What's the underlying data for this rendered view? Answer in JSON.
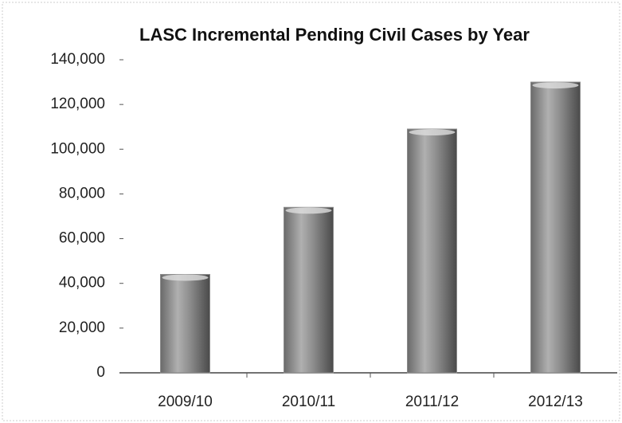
{
  "chart_data": {
    "type": "bar",
    "title": "LASC Incremental Pending Civil Cases by Year",
    "categories": [
      "2009/10",
      "2010/11",
      "2011/12",
      "2012/13"
    ],
    "values": [
      44000,
      74000,
      109000,
      130000
    ],
    "color": "#8a8a8a",
    "ylim": [
      0,
      140000
    ],
    "yticks": [
      0,
      {
        "value": 20000,
        "label": "20,000"
      },
      {
        "value": 40000,
        "label": "40,000"
      },
      {
        "value": 60000,
        "label": "60,000"
      },
      {
        "value": 80000,
        "label": "80,000"
      },
      {
        "value": 100000,
        "label": "100,000"
      },
      {
        "value": 120000,
        "label": "120,000"
      },
      {
        "value": 140000,
        "label": "140,000"
      }
    ],
    "grid": false
  }
}
